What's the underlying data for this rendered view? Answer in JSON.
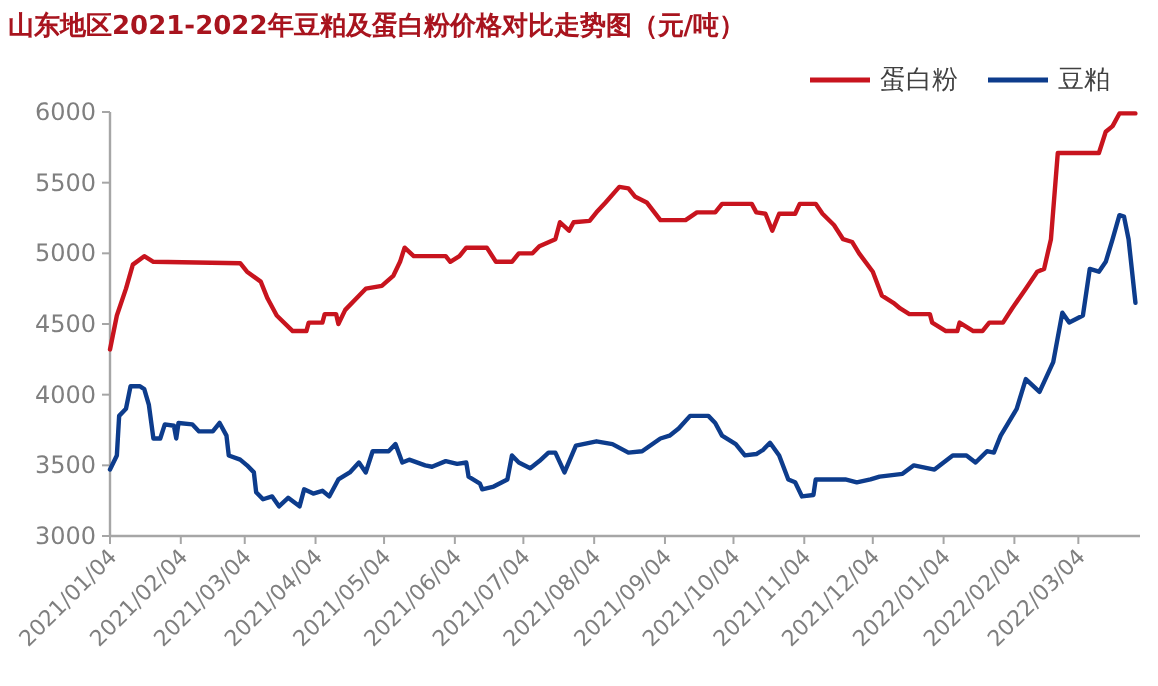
{
  "chart_data": {
    "type": "line",
    "title": "山东地区2021-2022年豆粕及蛋白粉价格对比走势图（元/吨）",
    "marker": "none",
    "line_style": "solid",
    "legend": "top right",
    "grid": false,
    "xlim": [
      "2021-01-04",
      "2022-03-31"
    ],
    "xticks": [
      {
        "value": "2021-01-04",
        "label": "2021/01/04"
      },
      {
        "value": "2021-02-04",
        "label": "2021/02/04"
      },
      {
        "value": "2021-03-04",
        "label": "2021/03/04"
      },
      {
        "value": "2021-04-04",
        "label": "2021/04/04"
      },
      {
        "value": "2021-05-04",
        "label": "2021/05/04"
      },
      {
        "value": "2021-06-04",
        "label": "2021/06/04"
      },
      {
        "value": "2021-07-04",
        "label": "2021/07/04"
      },
      {
        "value": "2021-08-04",
        "label": "2021/08/04"
      },
      {
        "value": "2021-09-04",
        "label": "2021/09/04"
      },
      {
        "value": "2021-10-04",
        "label": "2021/10/04"
      },
      {
        "value": "2021-11-04",
        "label": "2021/11/04"
      },
      {
        "value": "2021-12-04",
        "label": "2021/12/04"
      },
      {
        "value": "2022-01-04",
        "label": "2022/01/04"
      },
      {
        "value": "2022-02-04",
        "label": "2022/02/04"
      },
      {
        "value": "2022-03-04",
        "label": "2022/03/04"
      }
    ],
    "ylim": [
      3000,
      6000
    ],
    "yticks": [
      3000,
      3500,
      4000,
      4500,
      5000,
      5500,
      6000
    ],
    "series": [
      {
        "name": "蛋白粉",
        "color": "#c8141e",
        "x": [
          "2021-01-04",
          "2021-01-07",
          "2021-01-11",
          "2021-01-14",
          "2021-01-19",
          "2021-01-23",
          "2021-03-02",
          "2021-03-05",
          "2021-03-11",
          "2021-03-14",
          "2021-03-18",
          "2021-03-25",
          "2021-03-31",
          "2021-04-01",
          "2021-04-07",
          "2021-04-08",
          "2021-04-13",
          "2021-04-14",
          "2021-04-17",
          "2021-04-23",
          "2021-04-26",
          "2021-05-03",
          "2021-05-08",
          "2021-05-11",
          "2021-05-13",
          "2021-05-17",
          "2021-05-31",
          "2021-06-02",
          "2021-06-06",
          "2021-06-09",
          "2021-06-18",
          "2021-06-22",
          "2021-06-29",
          "2021-07-02",
          "2021-07-08",
          "2021-07-11",
          "2021-07-18",
          "2021-07-20",
          "2021-07-24",
          "2021-07-26",
          "2021-08-02",
          "2021-08-05",
          "2021-08-09",
          "2021-08-15",
          "2021-08-19",
          "2021-08-22",
          "2021-08-27",
          "2021-09-02",
          "2021-09-13",
          "2021-09-18",
          "2021-09-26",
          "2021-09-29",
          "2021-10-12",
          "2021-10-14",
          "2021-10-18",
          "2021-10-21",
          "2021-10-24",
          "2021-10-31",
          "2021-11-02",
          "2021-11-09",
          "2021-11-12",
          "2021-11-17",
          "2021-11-21",
          "2021-11-25",
          "2021-11-28",
          "2021-12-04",
          "2021-12-08",
          "2021-12-13",
          "2021-12-16",
          "2021-12-20",
          "2021-12-29",
          "2021-12-30",
          "2022-01-05",
          "2022-01-10",
          "2022-01-11",
          "2022-01-14",
          "2022-01-17",
          "2022-01-21",
          "2022-01-24",
          "2022-01-30",
          "2022-02-03",
          "2022-02-09",
          "2022-02-14",
          "2022-02-17",
          "2022-02-20",
          "2022-02-23",
          "2022-03-13",
          "2022-03-16",
          "2022-03-19",
          "2022-03-22",
          "2022-03-29"
        ],
        "values": [
          4320,
          4560,
          4750,
          4920,
          4980,
          4940,
          4930,
          4870,
          4800,
          4680,
          4560,
          4450,
          4450,
          4510,
          4510,
          4570,
          4570,
          4500,
          4600,
          4700,
          4750,
          4770,
          4840,
          4940,
          5040,
          4980,
          4980,
          4940,
          4980,
          5040,
          5040,
          4940,
          4940,
          5000,
          5000,
          5050,
          5100,
          5220,
          5160,
          5220,
          5230,
          5290,
          5360,
          5470,
          5460,
          5400,
          5360,
          5235,
          5235,
          5290,
          5290,
          5350,
          5350,
          5290,
          5280,
          5160,
          5280,
          5280,
          5350,
          5350,
          5280,
          5200,
          5100,
          5080,
          5000,
          4870,
          4700,
          4650,
          4610,
          4570,
          4570,
          4510,
          4450,
          4450,
          4510,
          4480,
          4450,
          4450,
          4510,
          4510,
          4610,
          4750,
          4870,
          4890,
          5100,
          5710,
          5710,
          5860,
          5900,
          5990,
          5990
        ]
      },
      {
        "name": "豆粕",
        "color": "#0d3c8c",
        "x": [
          "2021-01-04",
          "2021-01-07",
          "2021-01-08",
          "2021-01-11",
          "2021-01-13",
          "2021-01-17",
          "2021-01-19",
          "2021-01-21",
          "2021-01-23",
          "2021-01-26",
          "2021-01-28",
          "2021-02-01",
          "2021-02-02",
          "2021-02-03",
          "2021-02-09",
          "2021-02-12",
          "2021-02-18",
          "2021-02-21",
          "2021-02-24",
          "2021-02-25",
          "2021-03-02",
          "2021-03-05",
          "2021-03-08",
          "2021-03-09",
          "2021-03-12",
          "2021-03-16",
          "2021-03-19",
          "2021-03-23",
          "2021-03-28",
          "2021-03-30",
          "2021-04-03",
          "2021-04-07",
          "2021-04-10",
          "2021-04-14",
          "2021-04-19",
          "2021-04-23",
          "2021-04-26",
          "2021-04-29",
          "2021-05-06",
          "2021-05-09",
          "2021-05-12",
          "2021-05-15",
          "2021-05-22",
          "2021-05-25",
          "2021-05-31",
          "2021-06-05",
          "2021-06-09",
          "2021-06-10",
          "2021-06-15",
          "2021-06-16",
          "2021-06-21",
          "2021-06-27",
          "2021-06-29",
          "2021-07-02",
          "2021-07-07",
          "2021-07-11",
          "2021-07-15",
          "2021-07-18",
          "2021-07-22",
          "2021-07-27",
          "2021-08-05",
          "2021-08-12",
          "2021-08-19",
          "2021-08-25",
          "2021-09-02",
          "2021-09-06",
          "2021-09-10",
          "2021-09-15",
          "2021-09-23",
          "2021-09-26",
          "2021-09-29",
          "2021-10-05",
          "2021-10-09",
          "2021-10-14",
          "2021-10-17",
          "2021-10-20",
          "2021-10-24",
          "2021-10-28",
          "2021-10-31",
          "2021-11-03",
          "2021-11-08",
          "2021-11-09",
          "2021-11-22",
          "2021-11-27",
          "2021-12-03",
          "2021-12-07",
          "2021-12-17",
          "2021-12-22",
          "2021-12-31",
          "2022-01-04",
          "2022-01-08",
          "2022-01-14",
          "2022-01-18",
          "2022-01-23",
          "2022-01-26",
          "2022-01-29",
          "2022-02-05",
          "2022-02-09",
          "2022-02-15",
          "2022-02-21",
          "2022-02-25",
          "2022-02-28",
          "2022-03-06",
          "2022-03-09",
          "2022-03-13",
          "2022-03-16",
          "2022-03-19",
          "2022-03-22",
          "2022-03-24",
          "2022-03-26",
          "2022-03-29"
        ],
        "values": [
          3470,
          3570,
          3850,
          3900,
          4060,
          4060,
          4040,
          3930,
          3690,
          3690,
          3790,
          3780,
          3690,
          3800,
          3790,
          3740,
          3740,
          3800,
          3710,
          3570,
          3540,
          3500,
          3450,
          3310,
          3260,
          3280,
          3210,
          3270,
          3210,
          3330,
          3300,
          3320,
          3280,
          3400,
          3450,
          3520,
          3450,
          3600,
          3600,
          3650,
          3520,
          3540,
          3500,
          3490,
          3530,
          3510,
          3520,
          3420,
          3370,
          3330,
          3350,
          3400,
          3570,
          3520,
          3480,
          3530,
          3590,
          3590,
          3450,
          3640,
          3670,
          3650,
          3590,
          3600,
          3690,
          3710,
          3760,
          3850,
          3850,
          3800,
          3710,
          3650,
          3570,
          3580,
          3610,
          3660,
          3570,
          3400,
          3380,
          3280,
          3290,
          3400,
          3400,
          3380,
          3400,
          3420,
          3440,
          3500,
          3470,
          3520,
          3570,
          3570,
          3520,
          3600,
          3590,
          3710,
          3900,
          4110,
          4020,
          4230,
          4580,
          4510,
          4560,
          4890,
          4870,
          4940,
          5100,
          5270,
          5260,
          5100,
          4650
        ]
      }
    ]
  }
}
